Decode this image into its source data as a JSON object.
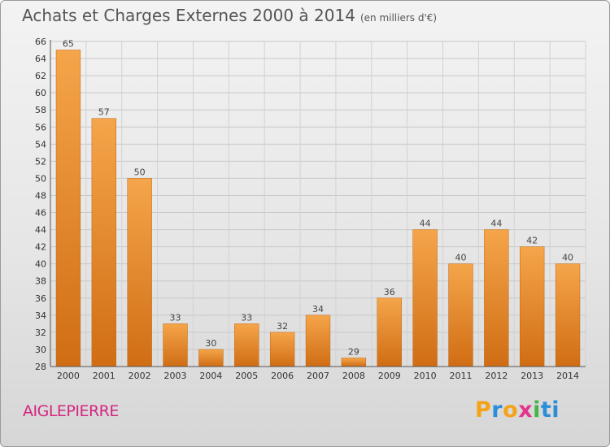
{
  "header": {
    "title": "Achats et Charges Externes 2000 à 2014",
    "unit": "(en milliers d'€)"
  },
  "footer": {
    "commune": "AIGLEPIERRE",
    "logo_letters": [
      "P",
      "r",
      "o",
      "x",
      "i",
      "ti"
    ]
  },
  "colors": {
    "bar_top": "#f5a54a",
    "bar_bottom": "#d06d14",
    "commune": "#d4267e"
  },
  "chart_data": {
    "type": "bar",
    "title": "Achats et Charges Externes 2000 à 2014",
    "subtitle": "(en milliers d'€)",
    "categories": [
      "2000",
      "2001",
      "2002",
      "2003",
      "2004",
      "2005",
      "2006",
      "2007",
      "2008",
      "2009",
      "2010",
      "2011",
      "2012",
      "2013",
      "2014"
    ],
    "values": [
      65,
      57,
      50,
      33,
      30,
      33,
      32,
      34,
      29,
      36,
      44,
      40,
      44,
      42,
      40
    ],
    "ylim": [
      28,
      66
    ],
    "yticks": [
      28,
      30,
      32,
      34,
      36,
      38,
      40,
      42,
      44,
      46,
      48,
      50,
      52,
      54,
      56,
      58,
      60,
      62,
      64,
      66
    ],
    "grid": true,
    "data_labels": true
  }
}
